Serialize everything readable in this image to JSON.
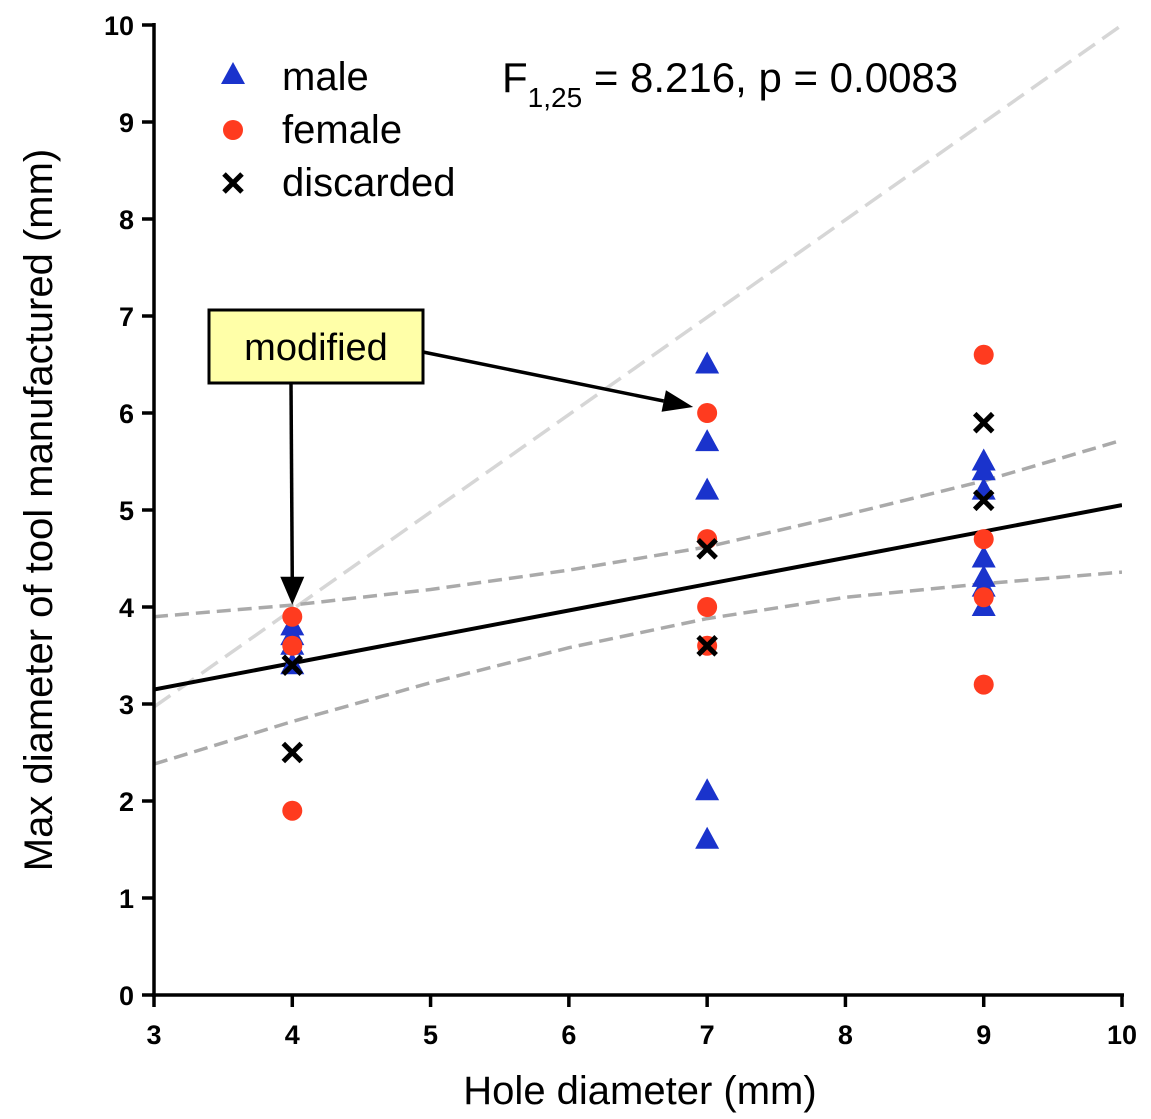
{
  "chart_data": {
    "type": "scatter",
    "title": "",
    "xlabel": "Hole diameter (mm)",
    "ylabel": "Max diameter of tool manufactured (mm)",
    "xlim": [
      3,
      10
    ],
    "ylim": [
      0,
      10
    ],
    "x_ticks": [
      "3",
      "4",
      "5",
      "6",
      "7",
      "8",
      "9",
      "10"
    ],
    "y_ticks": [
      "0",
      "1",
      "2",
      "3",
      "4",
      "5",
      "6",
      "7",
      "8",
      "9",
      "10"
    ],
    "grid": false,
    "legend_position": "top-left",
    "series": [
      {
        "name": "male",
        "marker": "triangle",
        "color": "#1a33cc",
        "points": [
          {
            "x": 4,
            "y": 3.8
          },
          {
            "x": 4,
            "y": 3.7
          },
          {
            "x": 4,
            "y": 3.6
          },
          {
            "x": 4,
            "y": 3.4
          },
          {
            "x": 7,
            "y": 6.5
          },
          {
            "x": 7,
            "y": 5.7
          },
          {
            "x": 7,
            "y": 5.2
          },
          {
            "x": 7,
            "y": 2.1
          },
          {
            "x": 7,
            "y": 1.6
          },
          {
            "x": 9,
            "y": 5.5
          },
          {
            "x": 9,
            "y": 5.4
          },
          {
            "x": 9,
            "y": 5.2
          },
          {
            "x": 9,
            "y": 4.5
          },
          {
            "x": 9,
            "y": 4.3
          },
          {
            "x": 9,
            "y": 4.2
          },
          {
            "x": 9,
            "y": 4.0
          }
        ]
      },
      {
        "name": "female",
        "marker": "circle",
        "color": "#ff3b1f",
        "points": [
          {
            "x": 4,
            "y": 3.9
          },
          {
            "x": 4,
            "y": 3.6
          },
          {
            "x": 4,
            "y": 1.9
          },
          {
            "x": 7,
            "y": 6.0
          },
          {
            "x": 7,
            "y": 4.7
          },
          {
            "x": 7,
            "y": 4.0
          },
          {
            "x": 7,
            "y": 3.6
          },
          {
            "x": 9,
            "y": 6.6
          },
          {
            "x": 9,
            "y": 4.7
          },
          {
            "x": 9,
            "y": 4.1
          },
          {
            "x": 9,
            "y": 3.2
          }
        ]
      },
      {
        "name": "discarded",
        "marker": "cross",
        "color": "#000000",
        "points": [
          {
            "x": 4,
            "y": 3.4
          },
          {
            "x": 4,
            "y": 2.5
          },
          {
            "x": 7,
            "y": 4.6
          },
          {
            "x": 7,
            "y": 3.6
          },
          {
            "x": 9,
            "y": 5.9
          },
          {
            "x": 9,
            "y": 5.1
          }
        ]
      }
    ],
    "regression": {
      "fit": {
        "x": [
          3,
          10
        ],
        "y": [
          3.15,
          5.05
        ]
      },
      "ci_upper": {
        "x": [
          3,
          4,
          5,
          6,
          7,
          8,
          9,
          10
        ],
        "y": [
          3.9,
          4.02,
          4.18,
          4.38,
          4.62,
          4.95,
          5.3,
          5.72
        ]
      },
      "ci_lower": {
        "x": [
          3,
          4,
          5,
          6,
          7,
          8,
          9,
          10
        ],
        "y": [
          2.38,
          2.82,
          3.22,
          3.58,
          3.88,
          4.1,
          4.24,
          4.36
        ]
      },
      "reference_line": {
        "x": [
          3,
          10
        ],
        "y": [
          2.97,
          10.0
        ]
      }
    },
    "annotations": {
      "stat_main": "F",
      "stat_subscript": "1,25",
      "stat_rest": " = 8.216, p = 0.0083",
      "callout_label": "modified",
      "callout_targets": [
        {
          "x": 4,
          "y": 3.9
        },
        {
          "x": 7,
          "y": 6.0
        }
      ]
    },
    "colors": {
      "fit_line": "#000000",
      "ci_lines": "#aaaaaa",
      "reference_line": "#d6d6d6",
      "callout_fill": "#ffffa8"
    }
  }
}
